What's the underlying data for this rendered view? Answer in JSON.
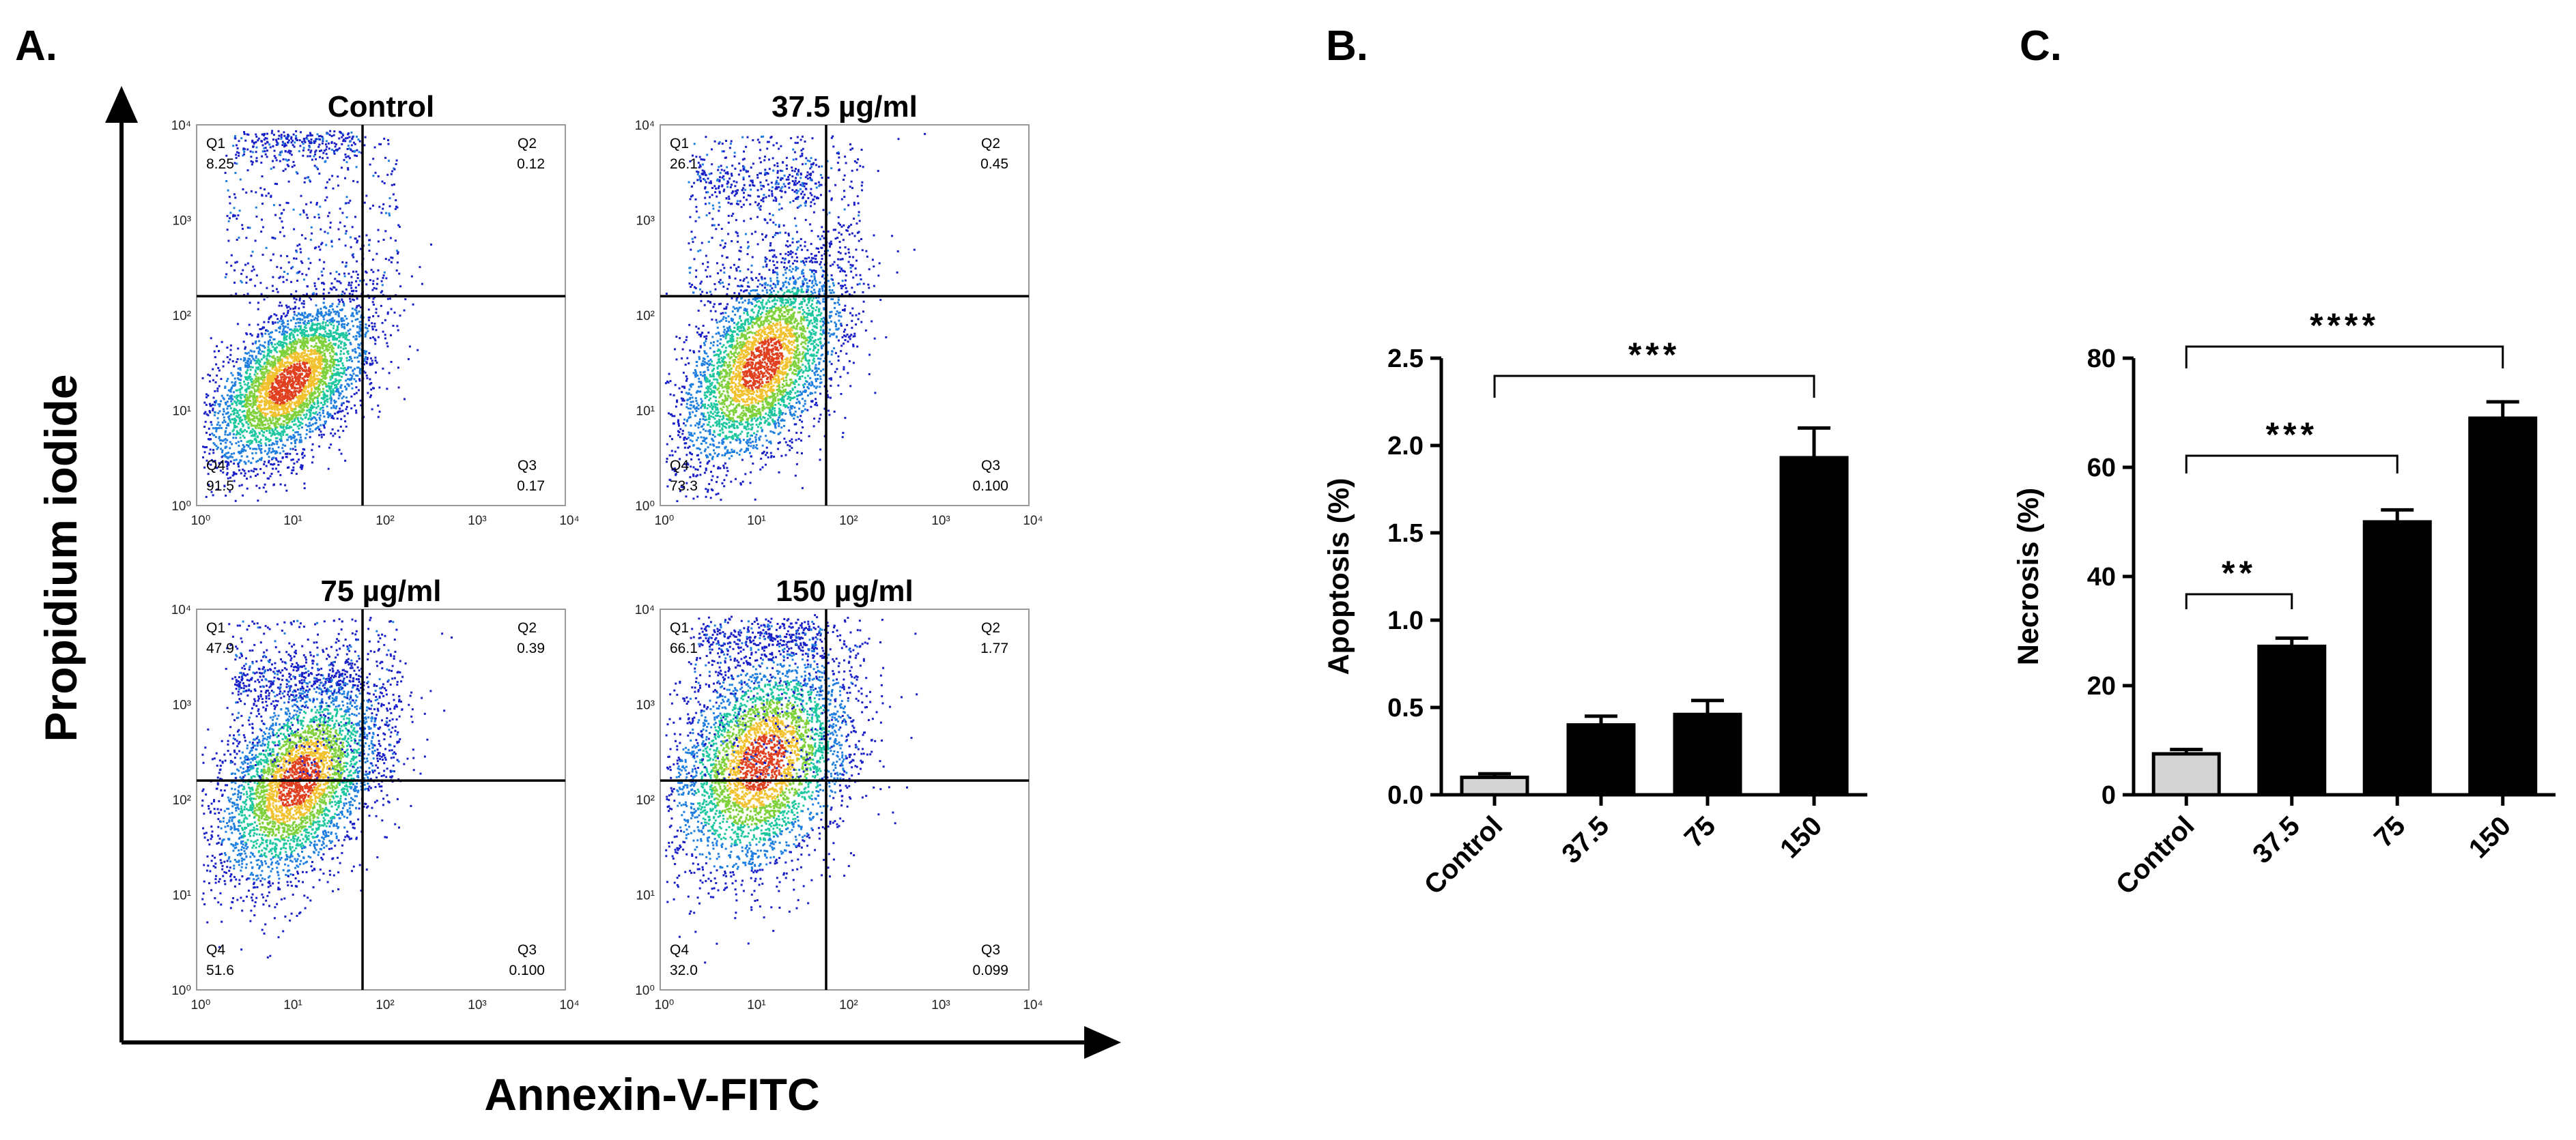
{
  "panel_labels": {
    "a": "A.",
    "b": "B.",
    "c": "C."
  },
  "axis_titles": {
    "y": "Propidium iodide",
    "x": "Annexin-V-FITC"
  },
  "quadrant_names": {
    "q1": "Q1",
    "q2": "Q2",
    "q3": "Q3",
    "q4": "Q4"
  },
  "flow_axis_ticks": [
    "10^0",
    "10^1",
    "10^2",
    "10^3",
    "10^4"
  ],
  "colors": {
    "bar_control": "#d4d4d4",
    "bar_treated": "#000000",
    "gate_line": "#000000",
    "density": [
      "#1a20c8",
      "#1f7fe0",
      "#1cc7a0",
      "#7fd13b",
      "#f2c12e",
      "#e0401f"
    ]
  },
  "chart_data": [
    {
      "type": "scatter",
      "subtype": "flow-cytometry-density",
      "title": "Control",
      "quadrants": {
        "Q1": "8.25",
        "Q2": "0.12",
        "Q3": "0.17",
        "Q4": "91.5"
      },
      "x_scale": "log",
      "y_scale": "log",
      "xlim": [
        1,
        10000
      ],
      "ylim": [
        1,
        10000
      ],
      "gate_x_log": 1.8,
      "gate_y_log": 2.2,
      "cluster": {
        "center_log": [
          1.0,
          1.3
        ],
        "spread_log": [
          0.45,
          0.45
        ],
        "correlation": 0.55
      },
      "q1_band": {
        "y_log": 3.85,
        "x_log_range": [
          0.4,
          1.75
        ]
      }
    },
    {
      "type": "scatter",
      "subtype": "flow-cytometry-density",
      "title": "37.5 µg/ml",
      "quadrants": {
        "Q1": "26.1",
        "Q2": "0.45",
        "Q3": "0.100",
        "Q4": "73.3"
      },
      "x_scale": "log",
      "y_scale": "log",
      "xlim": [
        1,
        10000
      ],
      "ylim": [
        1,
        10000
      ],
      "gate_x_log": 1.8,
      "gate_y_log": 2.2,
      "cluster": {
        "center_log": [
          1.1,
          1.5
        ],
        "spread_log": [
          0.45,
          0.55
        ],
        "correlation": 0.5
      },
      "q1_band": {
        "y_log": 3.4,
        "x_log_range": [
          0.4,
          1.75
        ]
      }
    },
    {
      "type": "scatter",
      "subtype": "flow-cytometry-density",
      "title": "75 µg/ml",
      "quadrants": {
        "Q1": "47.9",
        "Q2": "0.39",
        "Q3": "0.100",
        "Q4": "51.6"
      },
      "x_scale": "log",
      "y_scale": "log",
      "xlim": [
        1,
        10000
      ],
      "ylim": [
        1,
        10000
      ],
      "gate_x_log": 1.8,
      "gate_y_log": 2.2,
      "cluster": {
        "center_log": [
          1.1,
          2.2
        ],
        "spread_log": [
          0.45,
          0.55
        ],
        "correlation": 0.45
      },
      "q1_band": {
        "y_log": 3.3,
        "x_log_range": [
          0.4,
          1.75
        ]
      }
    },
    {
      "type": "scatter",
      "subtype": "flow-cytometry-density",
      "title": "150 µg/ml",
      "quadrants": {
        "Q1": "66.1",
        "Q2": "1.77",
        "Q3": "0.099",
        "Q4": "32.0"
      },
      "x_scale": "log",
      "y_scale": "log",
      "xlim": [
        1,
        10000
      ],
      "ylim": [
        1,
        10000
      ],
      "gate_x_log": 1.8,
      "gate_y_log": 2.2,
      "cluster": {
        "center_log": [
          1.1,
          2.4
        ],
        "spread_log": [
          0.5,
          0.6
        ],
        "correlation": 0.3
      },
      "q1_band": {
        "y_log": 3.7,
        "x_log_range": [
          0.4,
          1.75
        ]
      }
    },
    {
      "type": "bar",
      "title": "",
      "categories": [
        "Control",
        "37.5",
        "75",
        "150"
      ],
      "values": [
        0.1,
        0.4,
        0.46,
        1.93
      ],
      "errors": [
        0.02,
        0.05,
        0.08,
        0.17
      ],
      "ylabel": "Apoptosis (%)",
      "xlabel": "",
      "ylim": [
        0,
        2.5
      ],
      "yticks": [
        "0.0",
        "0.5",
        "1.0",
        "1.5",
        "2.0",
        "2.5"
      ],
      "significance": [
        {
          "from": 0,
          "to": 3,
          "label": "***"
        }
      ]
    },
    {
      "type": "bar",
      "title": "",
      "categories": [
        "Control",
        "37.5",
        "75",
        "150"
      ],
      "values": [
        7.5,
        27.2,
        50.0,
        69.0
      ],
      "errors": [
        0.8,
        1.5,
        2.2,
        3.0
      ],
      "ylabel": "Necrosis (%)",
      "xlabel": "",
      "ylim": [
        0,
        80
      ],
      "yticks": [
        "0",
        "20",
        "40",
        "60",
        "80"
      ],
      "significance": [
        {
          "from": 0,
          "to": 1,
          "label": "**"
        },
        {
          "from": 0,
          "to": 2,
          "label": "***"
        },
        {
          "from": 0,
          "to": 3,
          "label": "****"
        }
      ]
    }
  ]
}
